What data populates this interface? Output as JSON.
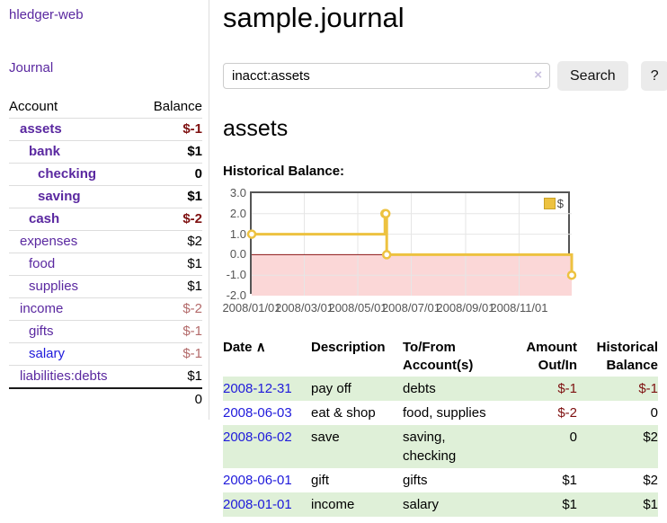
{
  "app": {
    "brand": "hledger-web"
  },
  "colors": {
    "link_purple": "#5a28a0",
    "link_blue": "#1f1adb",
    "negative_red": "#7e1010",
    "negative_dim_red": "#b36a6a",
    "row_stripe_green": "#dff0d8",
    "chart_gold": "#edc240"
  },
  "sidebar": {
    "nav_journal": "Journal",
    "accounts_table": {
      "headers": {
        "account": "Account",
        "balance": "Balance"
      },
      "rows": [
        {
          "name": "assets",
          "depth": 1,
          "name_style": "purple-bold",
          "balance": "$-1",
          "balance_style": "neg-strong"
        },
        {
          "name": "bank",
          "depth": 2,
          "name_style": "purple-bold",
          "balance": "$1",
          "balance_style": "pos-bold"
        },
        {
          "name": "checking",
          "depth": 3,
          "name_style": "purple-bold",
          "balance": "0",
          "balance_style": "pos-bold"
        },
        {
          "name": "saving",
          "depth": 3,
          "name_style": "purple-bold",
          "balance": "$1",
          "balance_style": "pos-bold"
        },
        {
          "name": "cash",
          "depth": 2,
          "name_style": "purple-bold",
          "balance": "$-2",
          "balance_style": "neg-strong"
        },
        {
          "name": "expenses",
          "depth": 1,
          "name_style": "purple",
          "balance": "$2",
          "balance_style": "pos"
        },
        {
          "name": "food",
          "depth": 2,
          "name_style": "purple",
          "balance": "$1",
          "balance_style": "pos"
        },
        {
          "name": "supplies",
          "depth": 2,
          "name_style": "purple",
          "balance": "$1",
          "balance_style": "pos"
        },
        {
          "name": "income",
          "depth": 1,
          "name_style": "purple",
          "balance": "$-2",
          "balance_style": "neg-dim"
        },
        {
          "name": "gifts",
          "depth": 2,
          "name_style": "purple",
          "balance": "$-1",
          "balance_style": "neg-dim"
        },
        {
          "name": "salary",
          "depth": 2,
          "name_style": "blue",
          "balance": "$-1",
          "balance_style": "neg-dim"
        },
        {
          "name": "liabilities:debts",
          "depth": 1,
          "name_style": "purple",
          "balance": "$1",
          "balance_style": "pos"
        }
      ],
      "total": "0"
    }
  },
  "main": {
    "title": "sample.journal",
    "search": {
      "value": "inacct:assets",
      "clear_icon": "×",
      "button": "Search",
      "help_button": "?"
    },
    "account_heading": "assets",
    "chart_label": "Historical Balance:"
  },
  "chart_data": {
    "type": "line",
    "step": true,
    "title": "Historical Balance:",
    "series": [
      {
        "name": "$",
        "color": "#edc240",
        "points": [
          [
            "2008-01-01",
            1
          ],
          [
            "2008-06-01",
            2
          ],
          [
            "2008-06-02",
            2
          ],
          [
            "2008-06-03",
            0
          ],
          [
            "2008-12-31",
            -1
          ]
        ]
      }
    ],
    "x_range": [
      "2008-01-01",
      "2008-12-31"
    ],
    "ylim": [
      -2,
      3
    ],
    "yticks": [
      "3.0",
      "2.0",
      "1.0",
      "0.0",
      "-1.0",
      "-2.0"
    ],
    "ytick_values": [
      3,
      2,
      1,
      0,
      -1,
      -2
    ],
    "xticks": [
      {
        "label": "2008/01/01",
        "date": "2008-01-01"
      },
      {
        "label": "2008/03/01",
        "date": "2008-03-01"
      },
      {
        "label": "2008/05/01",
        "date": "2008-05-01"
      },
      {
        "label": "2008/07/01",
        "date": "2008-07-01"
      },
      {
        "label": "2008/09/01",
        "date": "2008-09-01"
      },
      {
        "label": "2008/11/01",
        "date": "2008-11-01"
      }
    ],
    "grid": true,
    "legend_position": "top-right",
    "legend": [
      {
        "label": "$",
        "color": "#edc240"
      }
    ],
    "negative_region_color": "#fbd7d7",
    "zero_line_color": "#8b1515",
    "grid_color": "#e6e6e6",
    "border_color": "#555555"
  },
  "register": {
    "headers": {
      "date": "Date",
      "sort_icon": "∧",
      "description": "Description",
      "tofrom": "To/From Account(s)",
      "amount": "Amount Out/In",
      "balance": "Historical Balance"
    },
    "rows": [
      {
        "date": "2008-12-31",
        "description": "pay off",
        "accounts": "debts",
        "amount": "$-1",
        "balance": "$-1"
      },
      {
        "date": "2008-06-03",
        "description": "eat & shop",
        "accounts": "food, supplies",
        "amount": "$-2",
        "balance": "0"
      },
      {
        "date": "2008-06-02",
        "description": "save",
        "accounts": "saving,\nchecking",
        "amount": "0",
        "balance": "$2"
      },
      {
        "date": "2008-06-01",
        "description": "gift",
        "accounts": "gifts",
        "amount": "$1",
        "balance": "$2"
      },
      {
        "date": "2008-01-01",
        "description": "income",
        "accounts": "salary",
        "amount": "$1",
        "balance": "$1"
      }
    ]
  }
}
